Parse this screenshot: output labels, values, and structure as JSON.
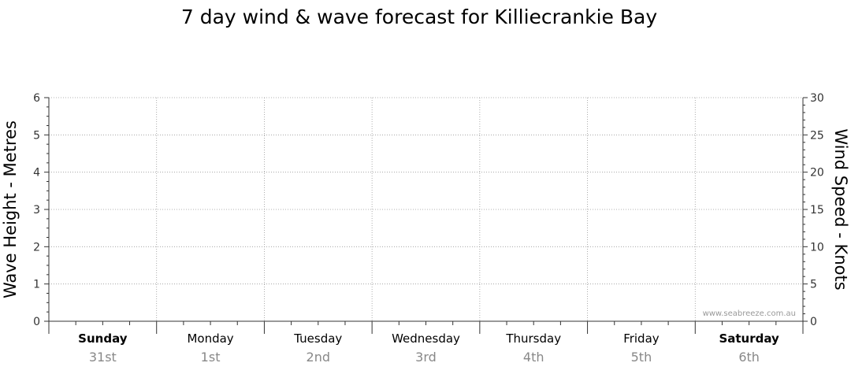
{
  "chart_data": {
    "type": "line",
    "title": "7 day wind & wave forecast for Killiecrankie Bay",
    "ylabel_left": "Wave Height - Metres",
    "ylabel_right": "Wind Speed - Knots",
    "ylim_left": [
      0,
      6
    ],
    "ylim_right": [
      0,
      30
    ],
    "yticks_left": [
      "0",
      "1",
      "2",
      "3",
      "4",
      "5",
      "6"
    ],
    "yticks_right": [
      "0",
      "5",
      "10",
      "15",
      "20",
      "25",
      "30"
    ],
    "grid": true,
    "days": [
      {
        "name": "Sunday",
        "date": "31st",
        "bold": true
      },
      {
        "name": "Monday",
        "date": "1st",
        "bold": false
      },
      {
        "name": "Tuesday",
        "date": "2nd",
        "bold": false
      },
      {
        "name": "Wednesday",
        "date": "3rd",
        "bold": false
      },
      {
        "name": "Thursday",
        "date": "4th",
        "bold": false
      },
      {
        "name": "Friday",
        "date": "5th",
        "bold": false
      },
      {
        "name": "Saturday",
        "date": "6th",
        "bold": true
      }
    ],
    "series": [],
    "watermark": "www.seabreeze.com.au"
  }
}
